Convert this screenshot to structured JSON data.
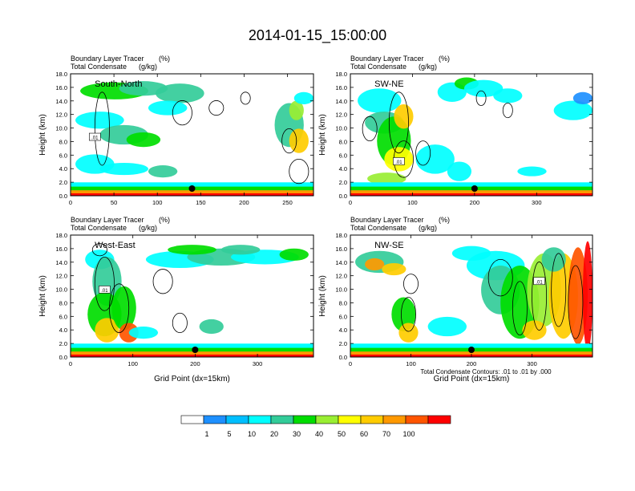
{
  "title": "2014-01-15_15:00:00",
  "left_label_1": "Boundary Layer Tracer",
  "left_label_2": "Total Condensate",
  "right_unit_1": "(%)",
  "right_unit_2": "(g/kg)",
  "xlabel": "Grid Point (dx=15km)",
  "ylabel": "Height (km)",
  "contour_info": "Total Condensate Contours: .01 to .01 by .000",
  "contour_label": ".01",
  "colors": {
    "levels": [
      "#ffffff",
      "#1e90ff",
      "#00bfff",
      "#00ffff",
      "#33cc99",
      "#00dd00",
      "#99ee33",
      "#ffff00",
      "#ffcc00",
      "#ff9900",
      "#ff5500",
      "#ff0000"
    ],
    "contour": "#000000",
    "marker": "#000000"
  },
  "chart_data": [
    {
      "type": "heatmap",
      "name": "South-North",
      "xlim": [
        0,
        280
      ],
      "xticks": [
        0,
        50,
        100,
        150,
        200,
        250
      ],
      "ylim": [
        0,
        18
      ],
      "yticks": [
        0.0,
        2.0,
        4.0,
        6.0,
        8.0,
        10.0,
        12.0,
        14.0,
        16.0,
        18.0
      ],
      "marker_x": 140
    },
    {
      "type": "heatmap",
      "name": "SW-NE",
      "xlim": [
        0,
        390
      ],
      "xticks": [
        0,
        100,
        200,
        300
      ],
      "ylim": [
        0,
        18
      ],
      "yticks": [
        0.0,
        2.0,
        4.0,
        6.0,
        8.0,
        10.0,
        12.0,
        14.0,
        16.0,
        18.0
      ],
      "marker_x": 200
    },
    {
      "type": "heatmap",
      "name": "West-East",
      "xlim": [
        0,
        390
      ],
      "xticks": [
        0,
        100,
        200,
        300
      ],
      "ylim": [
        0,
        18
      ],
      "yticks": [
        0.0,
        2.0,
        4.0,
        6.0,
        8.0,
        10.0,
        12.0,
        14.0,
        16.0,
        18.0
      ],
      "marker_x": 200
    },
    {
      "type": "heatmap",
      "name": "NW-SE",
      "xlim": [
        0,
        400
      ],
      "xticks": [
        0,
        100,
        200,
        300
      ],
      "ylim": [
        0,
        18
      ],
      "yticks": [
        0.0,
        2.0,
        4.0,
        6.0,
        8.0,
        10.0,
        12.0,
        14.0,
        16.0,
        18.0
      ],
      "marker_x": 200
    }
  ],
  "colorbar": {
    "labels": [
      "1",
      "5",
      "10",
      "20",
      "30",
      "40",
      "50",
      "60",
      "70",
      "100"
    ]
  }
}
